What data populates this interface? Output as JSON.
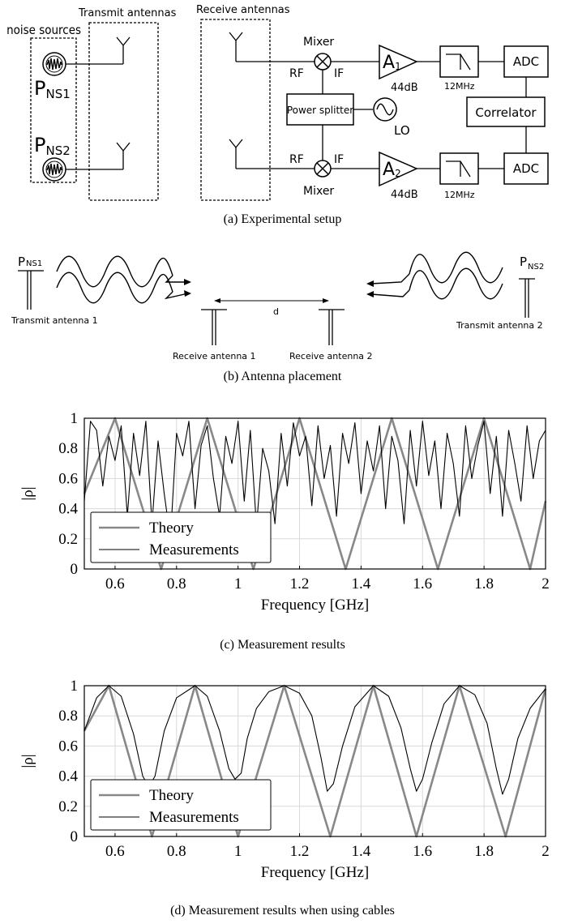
{
  "setup": {
    "noise_sources_label": "noise sources",
    "transmit_antennas_label": "Transmit antennas",
    "receive_antennas_label": "Receive antennas",
    "pns_prefix": "P",
    "pns1_sub": "NS1",
    "pns2_sub": "NS2",
    "mixer_label": "Mixer",
    "rf_label": "RF",
    "if_label": "IF",
    "amp1_letter": "A",
    "amp1_sub": "1",
    "amp2_letter": "A",
    "amp2_sub": "2",
    "gain_label": "44dB",
    "filter_label": "12MHz",
    "adc_label": "ADC",
    "correlator_label": "Correlator",
    "power_splitter_label": "Power splitter",
    "lo_label": "LO",
    "caption": "(a) Experimental setup"
  },
  "placement": {
    "pns1_sub": "NS1",
    "pns2_sub": "NS2",
    "pns_prefix": "P",
    "tx1_label": "Transmit antenna 1",
    "tx2_label": "Transmit antenna 2",
    "rx1_label": "Receive antenna 1",
    "rx2_label": "Receive antenna 2",
    "distance_label": "d",
    "caption": "(b) Antenna placement"
  },
  "chart_c": {
    "caption": "(c) Measurement results"
  },
  "chart_d": {
    "caption": "(d) Measurement results when using cables"
  },
  "chart_data": [
    {
      "type": "line",
      "title": "",
      "xlabel": "Frequency [GHz]",
      "ylabel": "|ρ|",
      "xlim": [
        0.5,
        2.0
      ],
      "ylim": [
        0,
        1
      ],
      "x_ticks": [
        "0.6",
        "0.8",
        "1",
        "1.2",
        "1.4",
        "1.6",
        "1.8",
        "2"
      ],
      "y_ticks": [
        "0",
        "0.2",
        "0.4",
        "0.6",
        "0.8",
        "1"
      ],
      "grid": true,
      "legend_position": "bottom-left",
      "series": [
        {
          "name": "Theory",
          "color": "#888888",
          "x": [
            0.5,
            0.6,
            0.75,
            0.9,
            1.05,
            1.2,
            1.35,
            1.5,
            1.65,
            1.8,
            1.95,
            2.0
          ],
          "y": [
            0.5,
            1.0,
            0.0,
            1.0,
            0.0,
            1.0,
            0.0,
            1.0,
            0.0,
            1.0,
            0.0,
            0.45
          ]
        },
        {
          "name": "Measurements",
          "color": "#000000",
          "x": [
            0.5,
            0.52,
            0.54,
            0.56,
            0.58,
            0.6,
            0.62,
            0.64,
            0.66,
            0.68,
            0.7,
            0.72,
            0.74,
            0.76,
            0.78,
            0.8,
            0.82,
            0.84,
            0.86,
            0.88,
            0.9,
            0.92,
            0.94,
            0.96,
            0.98,
            1.0,
            1.02,
            1.04,
            1.06,
            1.08,
            1.1,
            1.12,
            1.14,
            1.16,
            1.18,
            1.2,
            1.22,
            1.24,
            1.26,
            1.28,
            1.3,
            1.32,
            1.34,
            1.36,
            1.38,
            1.4,
            1.42,
            1.44,
            1.46,
            1.48,
            1.5,
            1.52,
            1.54,
            1.56,
            1.58,
            1.6,
            1.62,
            1.64,
            1.66,
            1.68,
            1.7,
            1.72,
            1.74,
            1.76,
            1.78,
            1.8,
            1.82,
            1.84,
            1.86,
            1.88,
            1.9,
            1.92,
            1.94,
            1.96,
            1.98,
            2.0
          ],
          "y": [
            0.45,
            0.98,
            0.92,
            0.55,
            0.88,
            0.72,
            0.95,
            0.35,
            0.9,
            0.62,
            0.98,
            0.3,
            0.85,
            0.5,
            0.2,
            0.9,
            0.75,
            0.98,
            0.4,
            0.82,
            0.95,
            0.6,
            0.35,
            0.88,
            0.7,
            0.98,
            0.45,
            0.92,
            0.28,
            0.8,
            0.65,
            0.3,
            0.9,
            0.55,
            0.97,
            0.75,
            0.88,
            0.42,
            0.95,
            0.6,
            0.82,
            0.35,
            0.9,
            0.7,
            0.97,
            0.5,
            0.85,
            0.65,
            0.95,
            0.4,
            0.88,
            0.72,
            0.3,
            0.92,
            0.55,
            0.98,
            0.62,
            0.85,
            0.4,
            0.9,
            0.7,
            0.35,
            0.95,
            0.6,
            0.82,
            0.98,
            0.5,
            0.88,
            0.35,
            0.92,
            0.7,
            0.45,
            0.95,
            0.6,
            0.85,
            0.92
          ]
        }
      ]
    },
    {
      "type": "line",
      "title": "",
      "xlabel": "Frequency [GHz]",
      "ylabel": "|ρ|",
      "xlim": [
        0.5,
        2.0
      ],
      "ylim": [
        0,
        1
      ],
      "x_ticks": [
        "0.6",
        "0.8",
        "1",
        "1.2",
        "1.4",
        "1.6",
        "1.8",
        "2"
      ],
      "y_ticks": [
        "0",
        "0.2",
        "0.4",
        "0.6",
        "0.8",
        "1"
      ],
      "grid": true,
      "legend_position": "bottom-left",
      "series": [
        {
          "name": "Theory",
          "color": "#888888",
          "x": [
            0.5,
            0.58,
            0.72,
            0.86,
            1.0,
            1.15,
            1.3,
            1.44,
            1.58,
            1.72,
            1.87,
            2.0
          ],
          "y": [
            0.7,
            1.0,
            0.0,
            1.0,
            0.0,
            1.0,
            0.0,
            1.0,
            0.0,
            1.0,
            0.0,
            0.98
          ]
        },
        {
          "name": "Measurements",
          "color": "#000000",
          "x": [
            0.5,
            0.54,
            0.58,
            0.62,
            0.66,
            0.69,
            0.71,
            0.73,
            0.76,
            0.8,
            0.86,
            0.9,
            0.94,
            0.97,
            0.99,
            1.01,
            1.03,
            1.06,
            1.1,
            1.15,
            1.2,
            1.24,
            1.27,
            1.29,
            1.31,
            1.34,
            1.38,
            1.44,
            1.49,
            1.53,
            1.56,
            1.58,
            1.6,
            1.63,
            1.67,
            1.72,
            1.77,
            1.81,
            1.84,
            1.86,
            1.88,
            1.91,
            1.95,
            2.0
          ],
          "y": [
            0.7,
            0.92,
            1.0,
            0.93,
            0.68,
            0.4,
            0.33,
            0.4,
            0.7,
            0.92,
            1.0,
            0.93,
            0.7,
            0.45,
            0.38,
            0.42,
            0.65,
            0.85,
            0.96,
            1.0,
            0.95,
            0.8,
            0.52,
            0.3,
            0.35,
            0.6,
            0.86,
            1.0,
            0.93,
            0.72,
            0.45,
            0.3,
            0.38,
            0.62,
            0.88,
            1.0,
            0.94,
            0.75,
            0.45,
            0.28,
            0.38,
            0.65,
            0.85,
            0.98
          ]
        }
      ]
    }
  ]
}
